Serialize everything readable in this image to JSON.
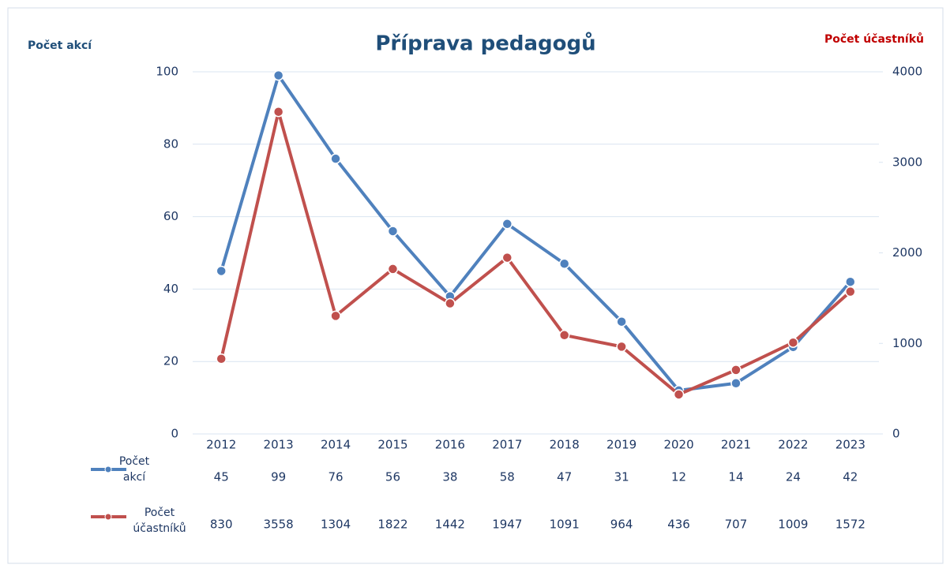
{
  "chart_data": {
    "type": "line",
    "title": "Příprava pedagogů",
    "y_label": "Počet akcí",
    "y2_label": "Počet účastníků",
    "categories": [
      "2012",
      "2013",
      "2014",
      "2015",
      "2016",
      "2017",
      "2018",
      "2019",
      "2020",
      "2021",
      "2022",
      "2023"
    ],
    "series": [
      {
        "name": "Počet akcí",
        "color": "#4f81bd",
        "values": [
          45,
          99,
          76,
          56,
          38,
          58,
          47,
          31,
          12,
          14,
          24,
          42
        ]
      },
      {
        "name": "Počet účastníků",
        "color": "#c0504d",
        "axis": "y2",
        "values": [
          830,
          3558,
          1304,
          1822,
          1442,
          1947,
          1091,
          964,
          436,
          707,
          1009,
          1572
        ]
      }
    ],
    "ylim": [
      0,
      100
    ],
    "yticks": [
      0,
      20,
      40,
      60,
      80,
      100
    ],
    "y2lim": [
      0,
      4000
    ],
    "y2ticks": [
      0,
      1000,
      2000,
      3000,
      4000
    ],
    "grid": true,
    "data_table": true
  }
}
